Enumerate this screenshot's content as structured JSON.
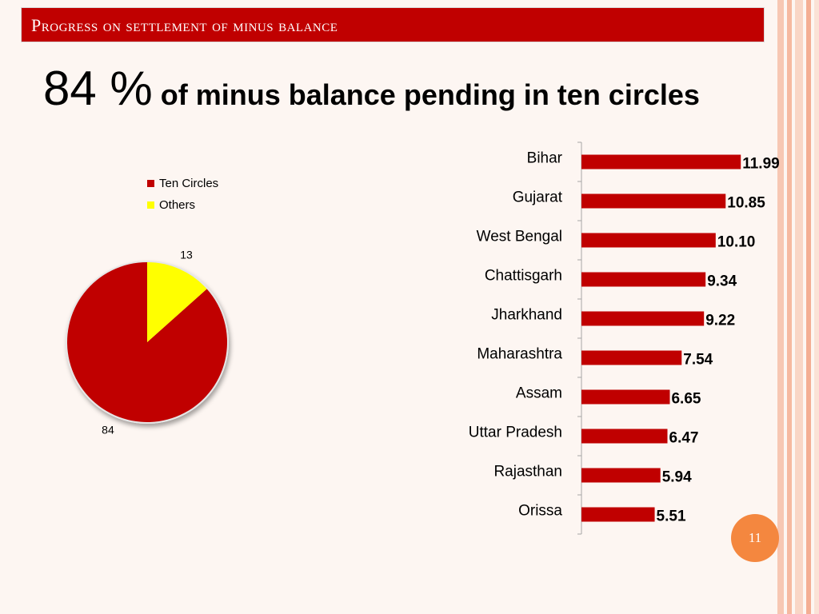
{
  "header": {
    "title": "Progress on settlement of  minus balance"
  },
  "headline": {
    "big": "84 %",
    "rest": " of minus balance pending in ten circles"
  },
  "page_number": "11",
  "colors": {
    "accent": "#c00000",
    "secondary": "#ffff00"
  },
  "chart_data": [
    {
      "type": "pie",
      "title": "",
      "legend_position": "top",
      "series": [
        {
          "name": "Ten Circles",
          "value": 84,
          "color": "#c00000"
        },
        {
          "name": "Others",
          "value": 13,
          "color": "#ffff00"
        }
      ]
    },
    {
      "type": "bar",
      "orientation": "horizontal",
      "title": "",
      "categories": [
        "Bihar",
        "Gujarat",
        "West Bengal",
        "Chattisgarh",
        "Jharkhand",
        "Maharashtra",
        "Assam",
        "Uttar Pradesh",
        "Rajasthan",
        "Orissa"
      ],
      "values": [
        11.99,
        10.85,
        10.1,
        9.34,
        9.22,
        7.54,
        6.65,
        6.47,
        5.94,
        5.51
      ],
      "value_labels": [
        "11.99",
        "10.85",
        "10.10",
        "9.34",
        "9.22",
        "7.54",
        "6.65",
        "6.47",
        "5.94",
        "5.51"
      ],
      "xlim": [
        0,
        13
      ],
      "grid": false,
      "color": "#c00000"
    }
  ]
}
